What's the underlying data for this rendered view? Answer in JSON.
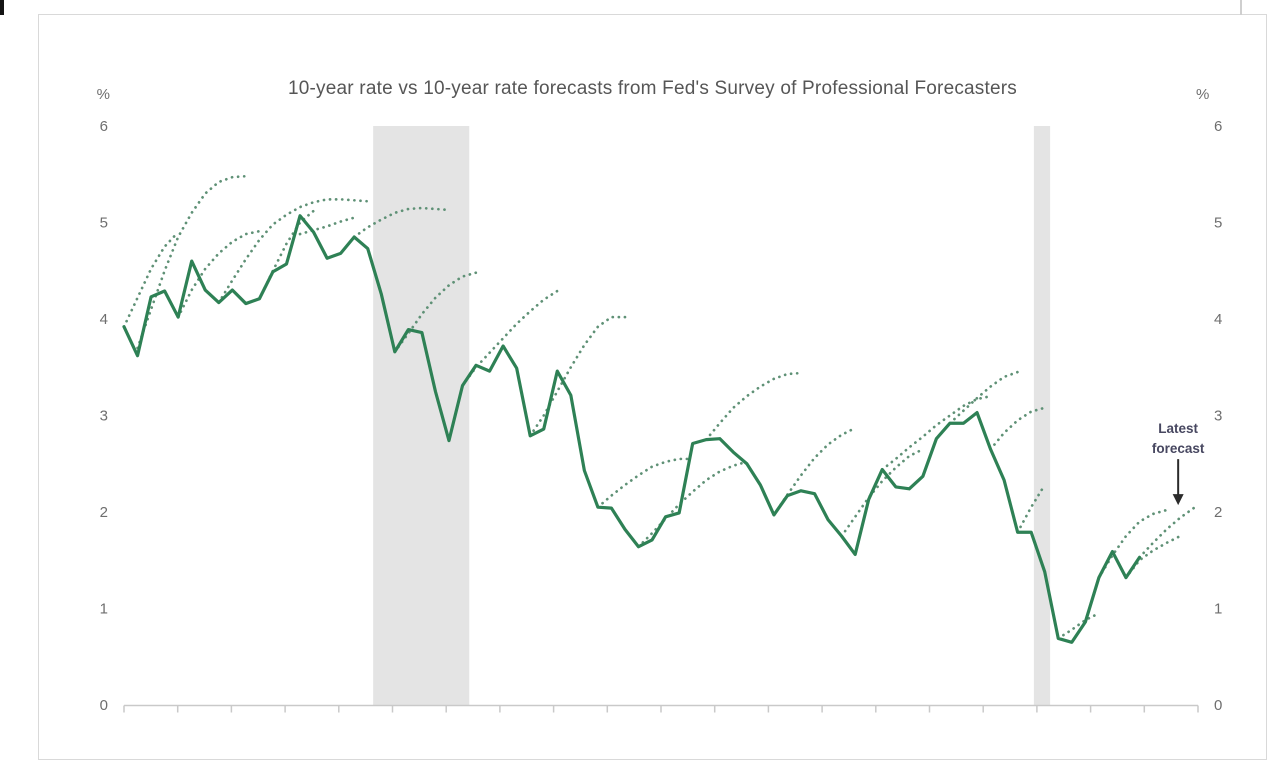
{
  "title": "10-year rate vs 10-year rate forecasts from Fed's Survey of Professional Forecasters",
  "chart_data": {
    "type": "line",
    "title": "10-year rate vs 10-year rate forecasts from Fed's Survey of Professional Forecasters",
    "unit_label": "%",
    "ylim": [
      0,
      6
    ],
    "y_ticks": [
      0,
      1,
      2,
      3,
      4,
      5,
      6
    ],
    "y_tick_sides": "both",
    "grid": false,
    "legend": "none",
    "x_axis": {
      "frequency": "quarterly",
      "year_tick_count": 21,
      "tick_labels_visible": false
    },
    "actual": {
      "name": "10-year rate",
      "style": "solid",
      "color": "#2e8155",
      "values": [
        3.92,
        3.62,
        4.23,
        4.29,
        4.02,
        4.6,
        4.3,
        4.17,
        4.3,
        4.16,
        4.21,
        4.49,
        4.57,
        5.07,
        4.9,
        4.63,
        4.68,
        4.85,
        4.73,
        4.26,
        3.66,
        3.89,
        3.86,
        3.25,
        2.74,
        3.31,
        3.52,
        3.46,
        3.72,
        3.49,
        2.79,
        2.86,
        3.46,
        3.21,
        2.43,
        2.05,
        2.04,
        1.82,
        1.64,
        1.71,
        1.95,
        1.99,
        2.71,
        2.75,
        2.76,
        2.62,
        2.5,
        2.28,
        1.97,
        2.17,
        2.22,
        2.19,
        1.92,
        1.75,
        1.56,
        2.13,
        2.44,
        2.26,
        2.24,
        2.37,
        2.76,
        2.92,
        2.92,
        3.03,
        2.65,
        2.33,
        1.79,
        1.79,
        1.38,
        0.69,
        0.65,
        0.86,
        1.32,
        1.59,
        1.32,
        1.53
      ]
    },
    "forecasts": {
      "name": "10-year rate forecasts from Fed's Survey of Professional Forecasters",
      "style": "dotted",
      "color": "#5f9176",
      "branches": [
        {
          "start_index": 0,
          "values": [
            3.92,
            4.22,
            4.52,
            4.75,
            4.9
          ]
        },
        {
          "start_index": 1,
          "values": [
            3.7,
            4.1,
            4.5,
            4.85,
            5.1,
            5.3,
            5.42,
            5.47,
            5.48
          ]
        },
        {
          "start_index": 4,
          "values": [
            4.02,
            4.3,
            4.52,
            4.68,
            4.8,
            4.88,
            4.91
          ]
        },
        {
          "start_index": 7,
          "values": [
            4.17,
            4.4,
            4.62,
            4.82,
            4.98,
            5.08,
            5.16,
            5.21,
            5.24,
            5.24,
            5.23,
            5.22
          ]
        },
        {
          "start_index": 10,
          "values": [
            4.21,
            4.5,
            4.78,
            5.0,
            5.12
          ]
        },
        {
          "start_index": 13,
          "values": [
            4.88,
            4.92,
            4.96,
            5.01,
            5.05
          ]
        },
        {
          "start_index": 17,
          "values": [
            4.85,
            4.95,
            5.03,
            5.1,
            5.14,
            5.15,
            5.14,
            5.13
          ]
        },
        {
          "start_index": 20,
          "values": [
            3.66,
            3.85,
            4.05,
            4.22,
            4.35,
            4.44,
            4.48
          ]
        },
        {
          "start_index": 25,
          "values": [
            3.31,
            3.5,
            3.65,
            3.8,
            3.95,
            4.08,
            4.2,
            4.29
          ]
        },
        {
          "start_index": 30,
          "values": [
            2.79,
            3.0,
            3.25,
            3.5,
            3.73,
            3.92,
            4.02,
            4.02
          ]
        },
        {
          "start_index": 35,
          "values": [
            2.05,
            2.17,
            2.28,
            2.38,
            2.47,
            2.52,
            2.55,
            2.55
          ]
        },
        {
          "start_index": 38,
          "values": [
            1.64,
            1.78,
            1.93,
            2.08,
            2.21,
            2.33,
            2.42,
            2.48,
            2.52
          ]
        },
        {
          "start_index": 43,
          "values": [
            2.75,
            2.92,
            3.08,
            3.2,
            3.3,
            3.38,
            3.43,
            3.44
          ]
        },
        {
          "start_index": 48,
          "values": [
            1.97,
            2.18,
            2.38,
            2.56,
            2.7,
            2.8,
            2.87
          ]
        },
        {
          "start_index": 53,
          "values": [
            1.75,
            1.95,
            2.15,
            2.32,
            2.46,
            2.58,
            2.65
          ]
        },
        {
          "start_index": 56,
          "values": [
            2.44,
            2.55,
            2.67,
            2.78,
            2.9,
            3.0,
            3.1,
            3.17,
            3.2
          ]
        },
        {
          "start_index": 61,
          "values": [
            2.92,
            3.05,
            3.18,
            3.3,
            3.4,
            3.45
          ]
        },
        {
          "start_index": 64,
          "values": [
            2.65,
            2.82,
            2.95,
            3.04,
            3.08
          ]
        },
        {
          "start_index": 66,
          "values": [
            1.79,
            2.05,
            2.28
          ]
        },
        {
          "start_index": 69,
          "values": [
            0.69,
            0.78,
            0.88,
            0.95
          ]
        },
        {
          "start_index": 72,
          "values": [
            1.32,
            1.55,
            1.75,
            1.9,
            1.98,
            2.02
          ]
        },
        {
          "start_index": 74,
          "values": [
            1.32,
            1.5,
            1.6,
            1.68,
            1.75
          ]
        },
        {
          "start_index": 75,
          "values": [
            1.53,
            1.68,
            1.82,
            1.94,
            2.04
          ],
          "is_latest": true
        }
      ]
    },
    "annotation": {
      "label": "Latest forecast",
      "text_color": "#474760",
      "arrow_color": "#2b2b2b"
    },
    "recession_bands": {
      "color": "#e4e4e4",
      "ranges": [
        {
          "from_index": 18.4,
          "to_index": 25.5
        },
        {
          "from_index": 67.2,
          "to_index": 68.4
        }
      ]
    },
    "axis_color": "#c9c9c9",
    "label_color": "#6e6e6e"
  }
}
